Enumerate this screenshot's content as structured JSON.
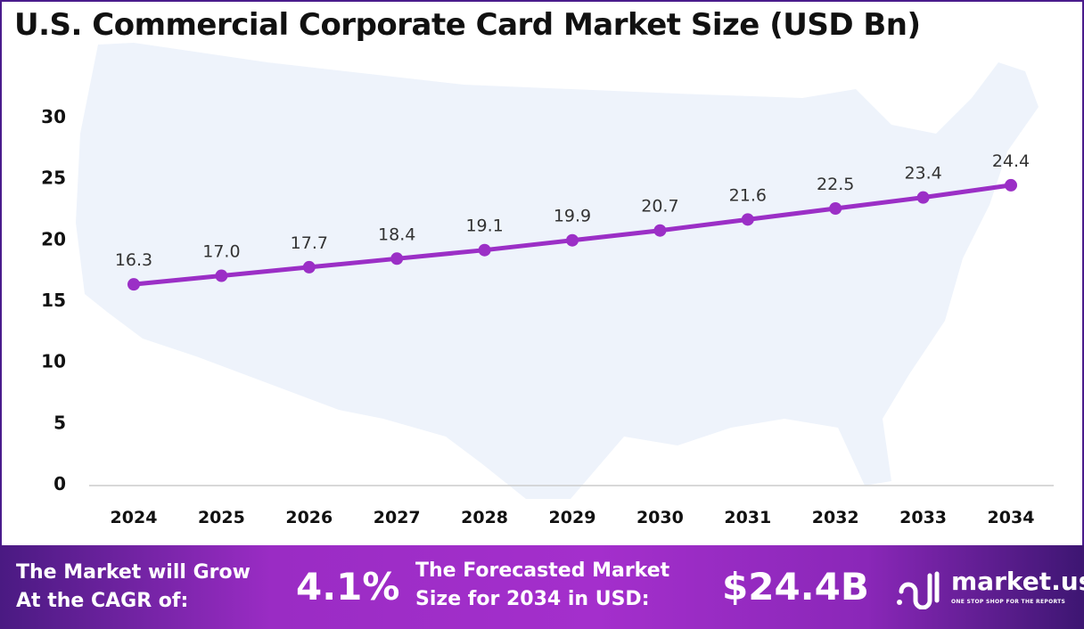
{
  "chart_data": {
    "type": "line",
    "title": "U.S. Commercial Corporate Card Market Size (USD Bn)",
    "categories": [
      "2024",
      "2025",
      "2026",
      "2027",
      "2028",
      "2029",
      "2030",
      "2031",
      "2032",
      "2033",
      "2034"
    ],
    "values": [
      16.3,
      17.0,
      17.7,
      18.4,
      19.1,
      19.9,
      20.7,
      21.6,
      22.5,
      23.4,
      24.4
    ],
    "data_labels": [
      "16.3",
      "17.0",
      "17.7",
      "18.4",
      "19.1",
      "19.9",
      "20.7",
      "21.6",
      "22.5",
      "23.4",
      "24.4"
    ],
    "yticks": [
      0,
      5,
      10,
      15,
      20,
      25,
      30
    ],
    "ylim": [
      0,
      30
    ],
    "grid": false,
    "line_color": "#9b2fc6",
    "background": "US map silhouette"
  },
  "footer": {
    "cagr_label_1": "The Market will Grow",
    "cagr_label_2": "At the CAGR of:",
    "cagr_value": "4.1%",
    "forecast_label_1": "The Forecasted Market",
    "forecast_label_2": "Size for 2034 in USD:",
    "forecast_value": "$24.4B",
    "logo_name": "market.us",
    "logo_tagline": "ONE STOP SHOP FOR THE REPORTS"
  }
}
